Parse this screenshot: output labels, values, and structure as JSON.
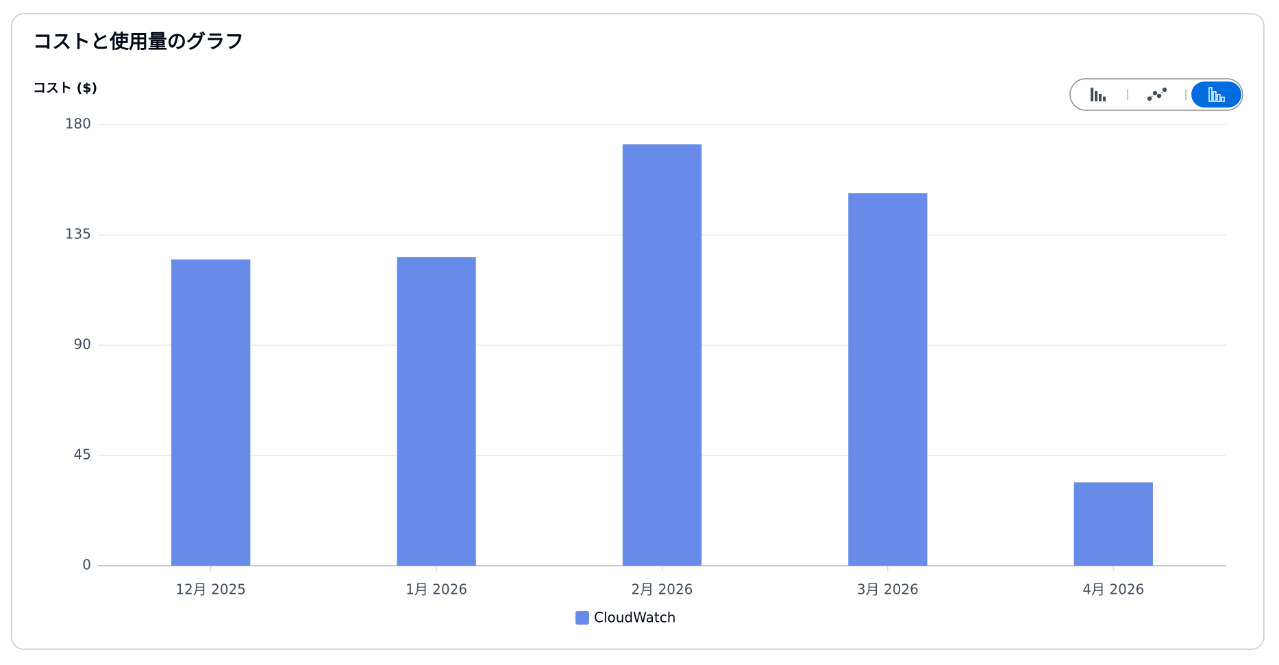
{
  "chart_data": {
    "type": "bar",
    "title": "コストと使用量のグラフ",
    "y_label": "コスト ($)",
    "categories": [
      "12月 2025",
      "1月 2026",
      "2月 2026",
      "3月 2026",
      "4月 2026"
    ],
    "series": [
      {
        "name": "CloudWatch",
        "color": "#688ae8",
        "values": [
          125,
          126,
          172,
          152,
          34
        ]
      }
    ],
    "ylim": [
      0,
      180
    ],
    "yticks": [
      0,
      45,
      90,
      135,
      180
    ],
    "grid": true
  }
}
